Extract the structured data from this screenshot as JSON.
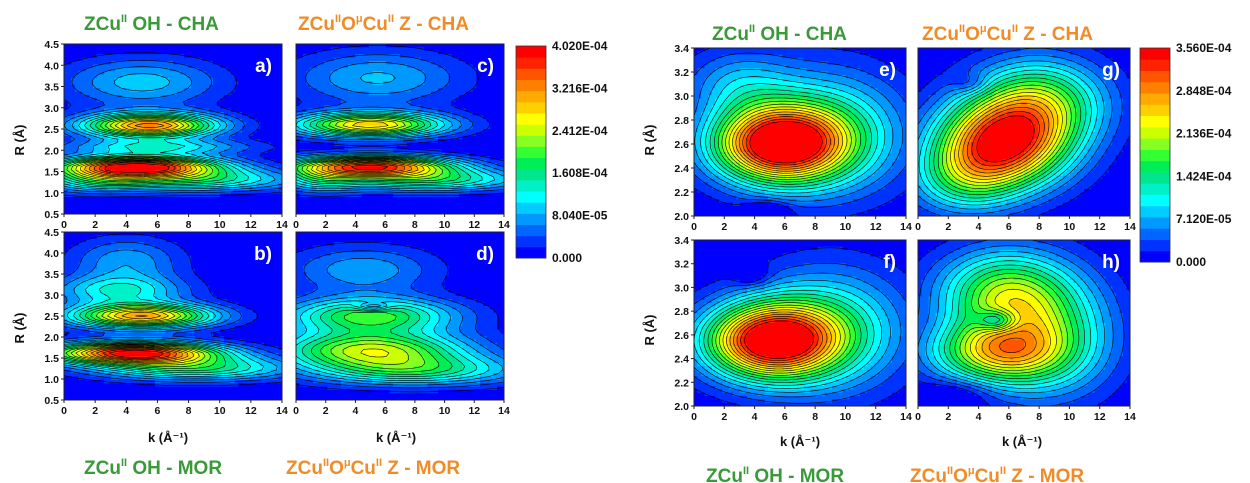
{
  "colormap": [
    "#0000ff",
    "#0033ff",
    "#0066ff",
    "#0099ff",
    "#00ccff",
    "#00ffff",
    "#00f0c8",
    "#00e68c",
    "#00ee55",
    "#33ff33",
    "#88ff22",
    "#ccff00",
    "#ffff00",
    "#ffd000",
    "#ffaa00",
    "#ff8000",
    "#ff5500",
    "#ff2200",
    "#ff0000"
  ],
  "colors": {
    "green_title": "#3a9a3a",
    "orange_title": "#f08c28",
    "contour_line": "#000000"
  },
  "figures": [
    {
      "titles": {
        "top_left": {
          "base": "ZCu",
          "sup1": "II",
          "rest": "OH - CHA",
          "color": "green"
        },
        "top_right": {
          "base": "ZCu",
          "sup1": "II",
          "mid": "O",
          "sup2": "μ",
          "mid2": "Cu",
          "sup3": "II",
          "rest": "Z - CHA",
          "color": "orange"
        },
        "bottom_left": {
          "base": "ZCu",
          "sup1": "II",
          "rest": "OH - MOR",
          "color": "green"
        },
        "bottom_right": {
          "base": "ZCu",
          "sup1": "II",
          "mid": "O",
          "sup2": "μ",
          "mid2": "Cu",
          "sup3": "II",
          "rest": "Z - MOR",
          "color": "orange"
        }
      },
      "xlabel": "k (Å⁻¹)",
      "ylabel": "R (Å)",
      "colorbar_labels": [
        "4.020E-04",
        "3.216E-04",
        "2.412E-04",
        "1.608E-04",
        "8.040E-05",
        "0.000"
      ]
    },
    {
      "titles": {
        "top_left": {
          "base": "ZCu",
          "sup1": "II",
          "rest": "OH - CHA",
          "color": "green"
        },
        "top_right": {
          "base": "ZCu",
          "sup1": "II",
          "mid": "O",
          "sup2": "μ",
          "mid2": "Cu",
          "sup3": "II",
          "rest": "Z - CHA",
          "color": "orange"
        },
        "bottom_left": {
          "base": "ZCu",
          "sup1": "II",
          "rest": "OH - MOR",
          "color": "green"
        },
        "bottom_right": {
          "base": "ZCu",
          "sup1": "II",
          "mid": "O",
          "sup2": "μ",
          "mid2": "Cu",
          "sup3": "II",
          "rest": "Z - MOR",
          "color": "orange"
        }
      },
      "xlabel": "k (Å⁻¹)",
      "ylabel": "R (Å)",
      "colorbar_labels": [
        "3.560E-04",
        "2.848E-04",
        "2.136E-04",
        "1.424E-04",
        "7.120E-05",
        "0.000"
      ]
    }
  ],
  "chart_data": [
    {
      "type": "heatmap",
      "label": "a)",
      "x": "k",
      "y": "R",
      "xlim": [
        0,
        14
      ],
      "ylim": [
        0.5,
        4.5
      ],
      "xticks": [
        "0",
        "2",
        "4",
        "6",
        "8",
        "10",
        "12",
        "14"
      ],
      "yticks": [
        "0.5",
        "1.0",
        "1.5",
        "2.0",
        "2.5",
        "3.0",
        "3.5",
        "4.0",
        "4.5"
      ],
      "zmax": 0.000402,
      "peaks": [
        {
          "k": 4.8,
          "R": 1.62,
          "amp": 1.0,
          "sk": 3.6,
          "sr": 0.17
        },
        {
          "k": 5.5,
          "R": 2.58,
          "amp": 0.82,
          "sk": 3.0,
          "sr": 0.2
        },
        {
          "k": 8.5,
          "R": 1.3,
          "amp": 0.38,
          "sk": 4.5,
          "sr": 0.18
        },
        {
          "k": 2.0,
          "R": 1.3,
          "amp": 0.28,
          "sk": 2.5,
          "sr": 0.2
        },
        {
          "k": 5.0,
          "R": 3.6,
          "amp": 0.24,
          "sk": 3.5,
          "sr": 0.4
        },
        {
          "k": 6.0,
          "R": 2.08,
          "amp": 0.3,
          "sk": 4.0,
          "sr": 0.12
        }
      ]
    },
    {
      "type": "heatmap",
      "label": "b)",
      "x": "k",
      "y": "R",
      "xlim": [
        0,
        14
      ],
      "ylim": [
        0.5,
        4.5
      ],
      "xticks": [
        "0",
        "2",
        "4",
        "6",
        "8",
        "10",
        "12",
        "14"
      ],
      "yticks": [
        "0.5",
        "1.0",
        "1.5",
        "2.0",
        "2.5",
        "3.0",
        "3.5",
        "4.0",
        "4.5"
      ],
      "zmax": 0.000402,
      "peaks": [
        {
          "k": 4.5,
          "R": 1.62,
          "amp": 1.0,
          "sk": 3.8,
          "sr": 0.18
        },
        {
          "k": 5.0,
          "R": 2.5,
          "amp": 0.78,
          "sk": 3.2,
          "sr": 0.2
        },
        {
          "k": 8.5,
          "R": 1.25,
          "amp": 0.4,
          "sk": 4.5,
          "sr": 0.2
        },
        {
          "k": 3.5,
          "R": 3.1,
          "amp": 0.3,
          "sk": 3.0,
          "sr": 0.25
        },
        {
          "k": 4.0,
          "R": 3.8,
          "amp": 0.2,
          "sk": 2.5,
          "sr": 0.4
        }
      ]
    },
    {
      "type": "heatmap",
      "label": "c)",
      "x": "k",
      "y": "R",
      "xlim": [
        0,
        14
      ],
      "ylim": [
        0.5,
        4.5
      ],
      "xticks": [
        "0",
        "2",
        "4",
        "6",
        "8",
        "10",
        "12",
        "14"
      ],
      "yticks": [
        "0.5",
        "1.0",
        "1.5",
        "2.0",
        "2.5",
        "3.0",
        "3.5",
        "4.0",
        "4.5"
      ],
      "zmax": 0.000402,
      "peaks": [
        {
          "k": 5.0,
          "R": 1.62,
          "amp": 0.92,
          "sk": 3.8,
          "sr": 0.17
        },
        {
          "k": 5.0,
          "R": 2.6,
          "amp": 0.72,
          "sk": 3.5,
          "sr": 0.2
        },
        {
          "k": 9.0,
          "R": 1.3,
          "amp": 0.4,
          "sk": 4.5,
          "sr": 0.18
        },
        {
          "k": 1.5,
          "R": 1.3,
          "amp": 0.25,
          "sk": 2.0,
          "sr": 0.2
        },
        {
          "k": 5.5,
          "R": 3.7,
          "amp": 0.22,
          "sk": 4.0,
          "sr": 0.45
        }
      ]
    },
    {
      "type": "heatmap",
      "label": "d)",
      "x": "k",
      "y": "R",
      "xlim": [
        0,
        14
      ],
      "ylim": [
        0.5,
        4.5
      ],
      "xticks": [
        "0",
        "2",
        "4",
        "6",
        "8",
        "10",
        "12",
        "14"
      ],
      "yticks": [
        "0.5",
        "1.0",
        "1.5",
        "2.0",
        "2.5",
        "3.0",
        "3.5",
        "4.0",
        "4.5"
      ],
      "zmax": 0.000402,
      "peaks": [
        {
          "k": 5.0,
          "R": 1.7,
          "amp": 0.58,
          "sk": 4.5,
          "sr": 0.3
        },
        {
          "k": 5.0,
          "R": 2.5,
          "amp": 0.5,
          "sk": 4.0,
          "sr": 0.3
        },
        {
          "k": 8.0,
          "R": 1.2,
          "amp": 0.38,
          "sk": 5.0,
          "sr": 0.25
        },
        {
          "k": 5.2,
          "R": 2.72,
          "amp": -0.22,
          "sk": 0.8,
          "sr": 0.06
        },
        {
          "k": 4.5,
          "R": 3.6,
          "amp": 0.2,
          "sk": 3.5,
          "sr": 0.4
        }
      ]
    },
    {
      "type": "heatmap",
      "label": "e)",
      "x": "k",
      "y": "R",
      "xlim": [
        0,
        14
      ],
      "ylim": [
        2.0,
        3.4
      ],
      "xticks": [
        "0",
        "2",
        "4",
        "6",
        "8",
        "10",
        "12",
        "14"
      ],
      "yticks": [
        "2.0",
        "2.2",
        "2.4",
        "2.6",
        "2.8",
        "3.0",
        "3.2",
        "3.4"
      ],
      "zmax": 0.000356,
      "peaks": [
        {
          "k": 5.5,
          "R": 2.6,
          "amp": 1.0,
          "sk": 3.0,
          "sr": 0.22
        },
        {
          "k": 9.0,
          "R": 2.7,
          "amp": 0.35,
          "sk": 3.5,
          "sr": 0.35
        },
        {
          "k": 3.0,
          "R": 3.1,
          "amp": 0.2,
          "sk": 2.5,
          "sr": 0.2
        },
        {
          "k": 4.8,
          "R": 2.05,
          "amp": -0.15,
          "sk": 1.0,
          "sr": 0.05
        }
      ]
    },
    {
      "type": "heatmap",
      "label": "f)",
      "x": "k",
      "y": "R",
      "xlim": [
        0,
        14
      ],
      "ylim": [
        2.0,
        3.4
      ],
      "xticks": [
        "0",
        "2",
        "4",
        "6",
        "8",
        "10",
        "12",
        "14"
      ],
      "yticks": [
        "2.0",
        "2.2",
        "2.4",
        "2.6",
        "2.8",
        "3.0",
        "3.2",
        "3.4"
      ],
      "zmax": 0.000356,
      "peaks": [
        {
          "k": 5.0,
          "R": 2.55,
          "amp": 1.0,
          "sk": 3.0,
          "sr": 0.22
        },
        {
          "k": 9.0,
          "R": 2.65,
          "amp": 0.35,
          "sk": 3.5,
          "sr": 0.35
        },
        {
          "k": 3.8,
          "R": 3.1,
          "amp": -0.12,
          "sk": 0.8,
          "sr": 0.06
        }
      ]
    },
    {
      "type": "heatmap",
      "label": "g)",
      "x": "k",
      "y": "R",
      "xlim": [
        0,
        14
      ],
      "ylim": [
        2.0,
        3.4
      ],
      "xticks": [
        "0",
        "2",
        "4",
        "6",
        "8",
        "10",
        "12",
        "14"
      ],
      "yticks": [
        "2.0",
        "2.2",
        "2.4",
        "2.6",
        "2.8",
        "3.0",
        "3.2",
        "3.4"
      ],
      "zmax": 0.000356,
      "peaks": [
        {
          "k": 5.5,
          "R": 2.6,
          "amp": 0.9,
          "sk": 3.0,
          "sr": 0.25
        },
        {
          "k": 8.0,
          "R": 2.95,
          "amp": 0.5,
          "sk": 3.0,
          "sr": 0.25
        },
        {
          "k": 3.0,
          "R": 2.3,
          "amp": 0.3,
          "sk": 2.5,
          "sr": 0.2
        },
        {
          "k": 3.5,
          "R": 3.1,
          "amp": -0.1,
          "sk": 0.8,
          "sr": 0.06
        }
      ]
    },
    {
      "type": "heatmap",
      "label": "h)",
      "x": "k",
      "y": "R",
      "xlim": [
        0,
        14
      ],
      "ylim": [
        2.0,
        3.4
      ],
      "xticks": [
        "0",
        "2",
        "4",
        "6",
        "8",
        "10",
        "12",
        "14"
      ],
      "yticks": [
        "2.0",
        "2.2",
        "2.4",
        "2.6",
        "2.8",
        "3.0",
        "3.2",
        "3.4"
      ],
      "zmax": 0.000356,
      "peaks": [
        {
          "k": 5.0,
          "R": 2.45,
          "amp": 0.55,
          "sk": 3.0,
          "sr": 0.18
        },
        {
          "k": 5.5,
          "R": 2.95,
          "amp": 0.48,
          "sk": 3.0,
          "sr": 0.25
        },
        {
          "k": 8.5,
          "R": 2.6,
          "amp": 0.4,
          "sk": 3.0,
          "sr": 0.35
        },
        {
          "k": 5.2,
          "R": 2.72,
          "amp": -0.3,
          "sk": 0.9,
          "sr": 0.06
        },
        {
          "k": 2.5,
          "R": 2.1,
          "amp": -0.1,
          "sk": 1.5,
          "sr": 0.08
        }
      ]
    }
  ]
}
